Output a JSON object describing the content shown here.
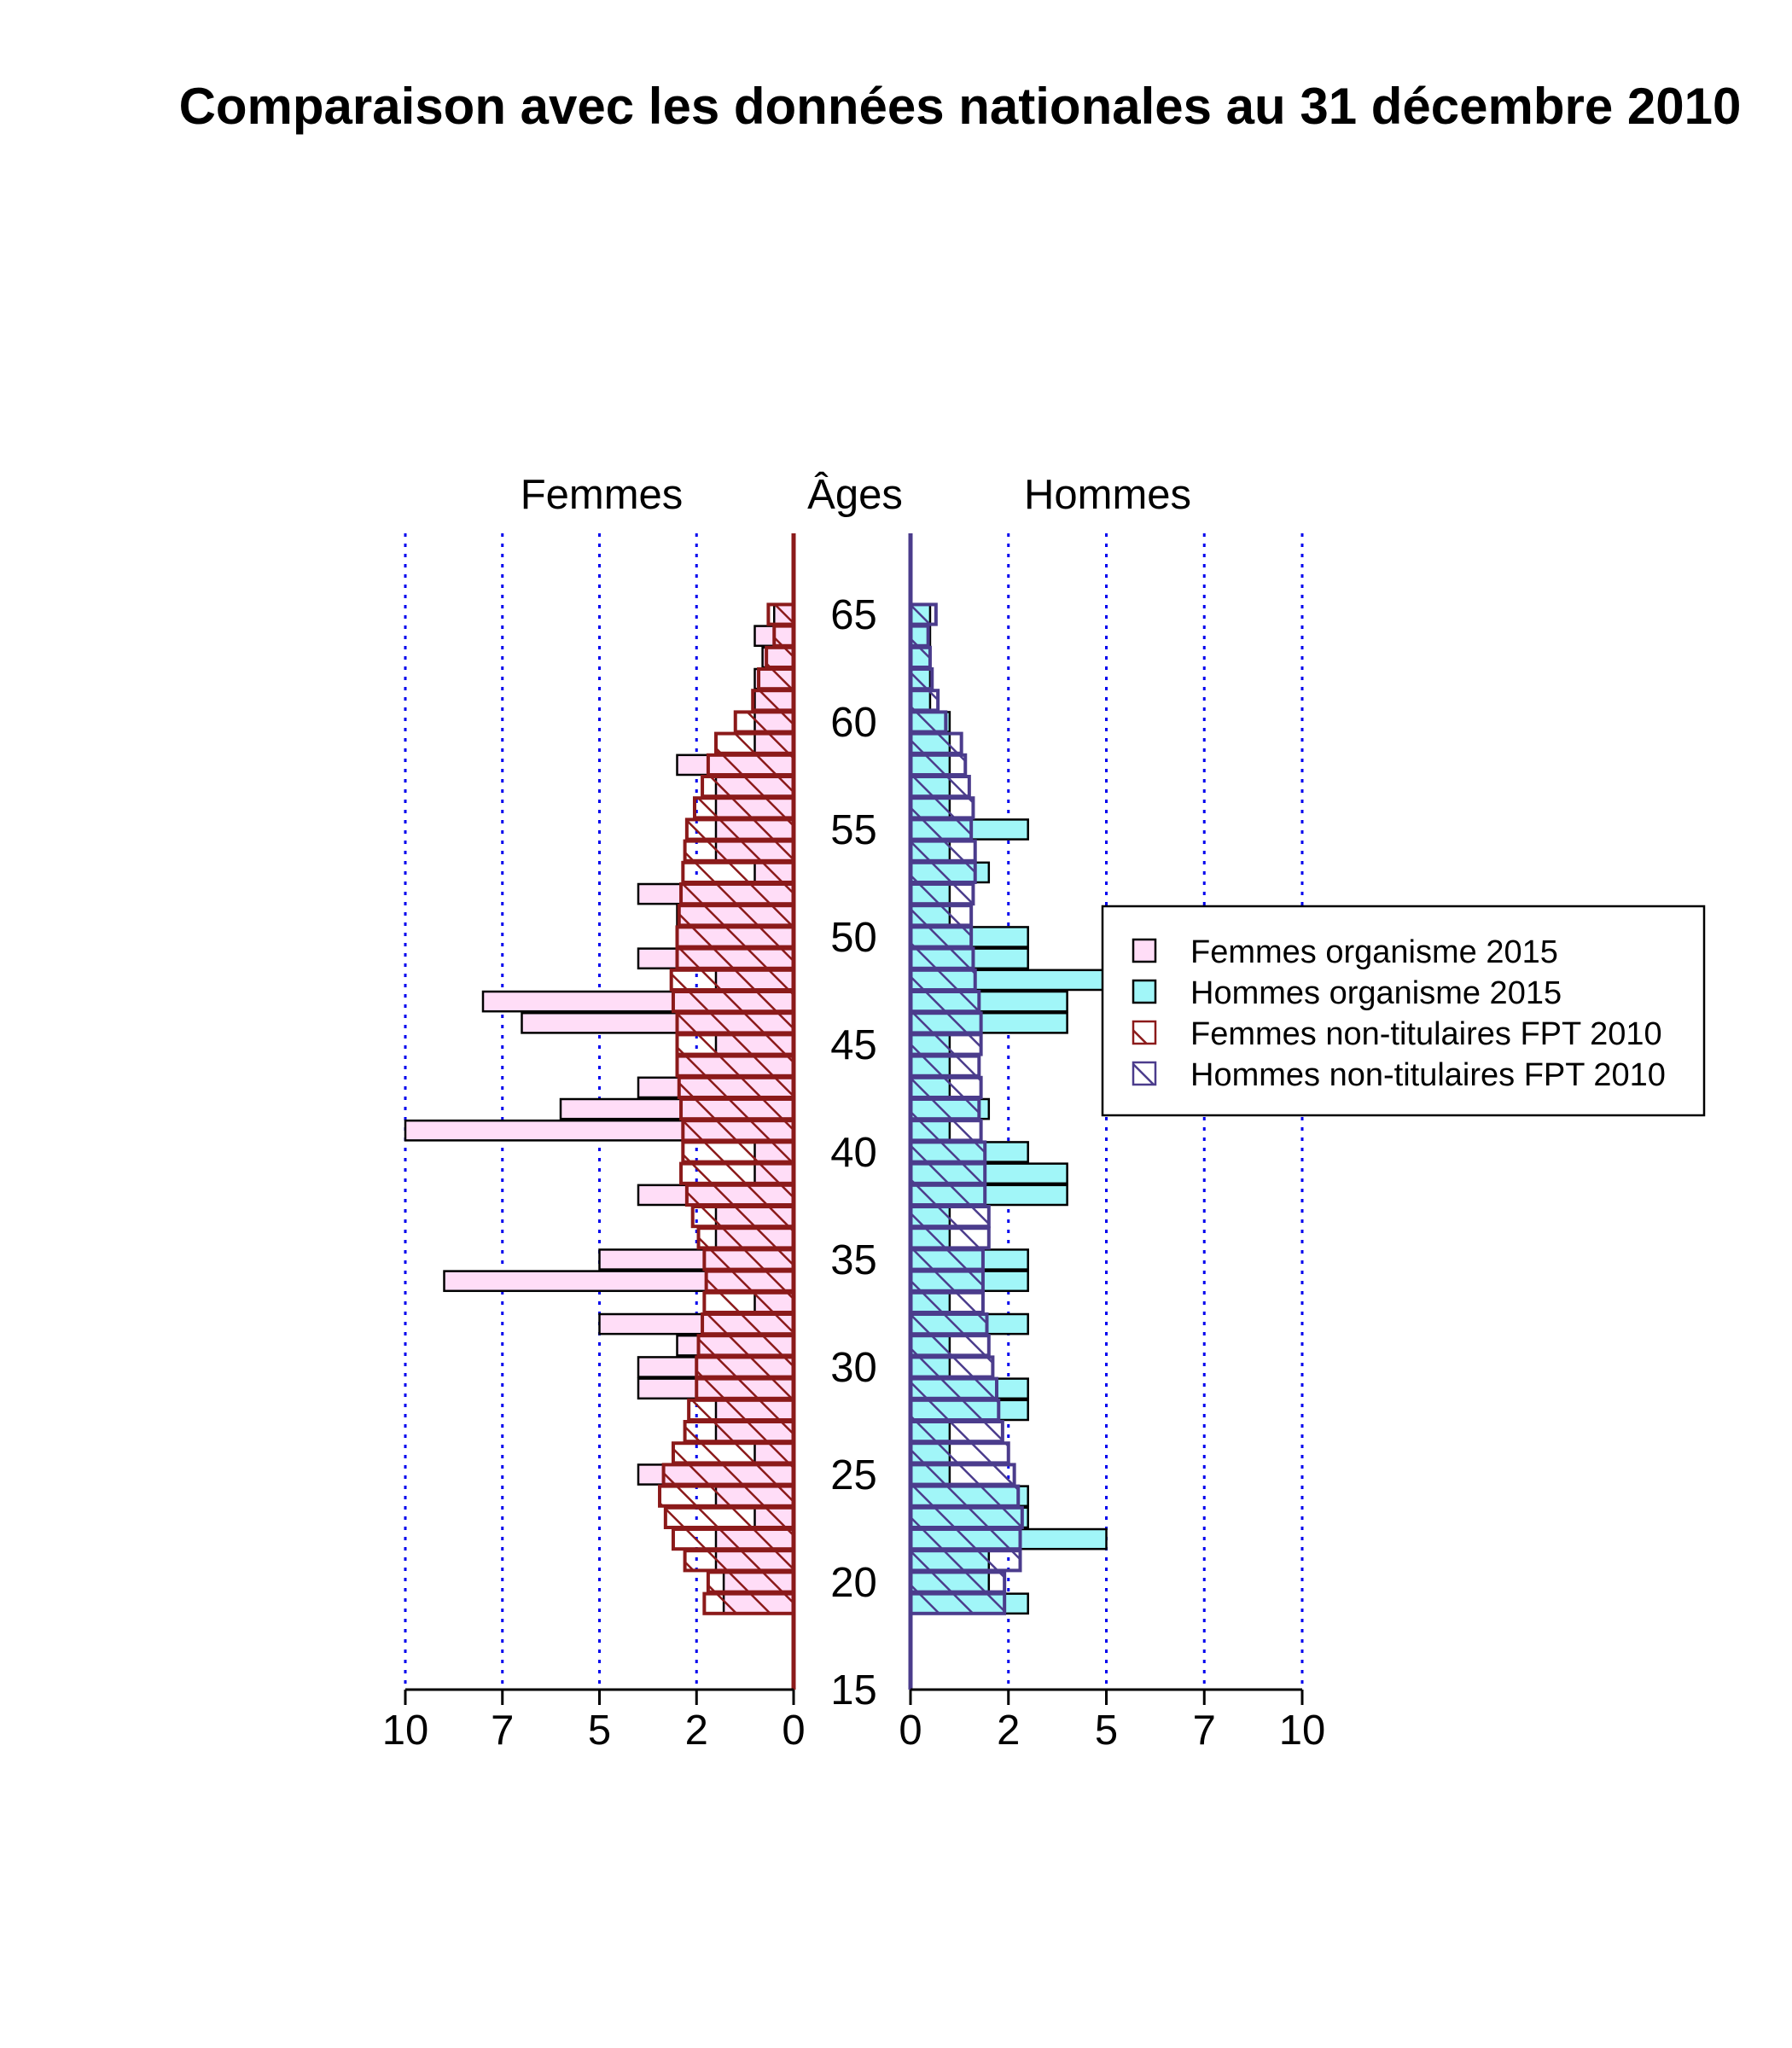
{
  "chart_data": {
    "type": "bar",
    "subtype": "population-pyramid",
    "title": "Comparaison avec les données nationales au 31 décembre 2010",
    "left_label": "Femmes",
    "center_label": "Âges",
    "right_label": "Hommes",
    "ages": [
      19,
      20,
      21,
      22,
      23,
      24,
      25,
      26,
      27,
      28,
      29,
      30,
      31,
      32,
      33,
      34,
      35,
      36,
      37,
      38,
      39,
      40,
      41,
      42,
      43,
      44,
      45,
      46,
      47,
      48,
      49,
      50,
      51,
      52,
      53,
      54,
      55,
      56,
      57,
      58,
      59,
      60,
      61,
      62,
      63,
      64,
      65
    ],
    "age_ticks": [
      15,
      20,
      25,
      30,
      35,
      40,
      45,
      50,
      55,
      60,
      65
    ],
    "x_ticks_left": [
      "10",
      "7",
      "5",
      "2",
      "0"
    ],
    "x_ticks_right": [
      "0",
      "2",
      "5",
      "7",
      "10"
    ],
    "x_tick_values": [
      0,
      2.5,
      5,
      7.5,
      10
    ],
    "xlim": [
      0,
      10
    ],
    "series": [
      {
        "name": "Femmes organisme 2015",
        "side": "left",
        "color": "#ffddf7",
        "values": [
          1.8,
          1.8,
          2.0,
          2.0,
          1.0,
          2.0,
          4.0,
          1.0,
          2.0,
          2.0,
          4.0,
          4.0,
          3.0,
          5.0,
          1.0,
          9.0,
          5.0,
          2.0,
          2.0,
          4.0,
          1.0,
          1.0,
          10.0,
          6.0,
          4.0,
          3.0,
          2.0,
          7.0,
          8.0,
          2.0,
          4.0,
          3.0,
          3.0,
          4.0,
          1.0,
          2.0,
          2.0,
          2.0,
          2.0,
          3.0,
          1.0,
          1.0,
          1.0,
          1.0,
          0.8,
          1.0,
          0.5
        ]
      },
      {
        "name": "Hommes organisme 2015",
        "side": "right",
        "color": "#a1f6f8",
        "values": [
          3.0,
          2.0,
          2.0,
          5.0,
          3.0,
          3.0,
          1.0,
          1.0,
          1.0,
          3.0,
          3.0,
          1.0,
          1.0,
          3.0,
          1.0,
          3.0,
          3.0,
          1.0,
          1.0,
          4.0,
          4.0,
          3.0,
          1.0,
          2.0,
          1.0,
          1.0,
          1.0,
          4.0,
          4.0,
          5.0,
          3.0,
          3.0,
          1.0,
          1.0,
          2.0,
          1.0,
          3.0,
          1.0,
          1.0,
          1.0,
          1.0,
          1.0,
          0.5,
          0.5,
          0.5,
          0.5,
          0.5
        ]
      },
      {
        "name": "Femmes non-titulaires FPT 2010",
        "side": "left",
        "color": "#8b1a1a",
        "values": [
          2.3,
          2.2,
          2.8,
          3.1,
          3.3,
          3.45,
          3.35,
          3.1,
          2.8,
          2.7,
          2.5,
          2.5,
          2.45,
          2.35,
          2.3,
          2.25,
          2.3,
          2.45,
          2.6,
          2.75,
          2.9,
          2.85,
          2.85,
          2.9,
          2.95,
          3.0,
          3.0,
          3.0,
          3.1,
          3.15,
          3.0,
          3.0,
          2.95,
          2.9,
          2.85,
          2.8,
          2.75,
          2.55,
          2.35,
          2.2,
          2.0,
          1.5,
          1.05,
          0.9,
          0.7,
          0.5,
          0.65
        ]
      },
      {
        "name": "Hommes non-titulaires FPT 2010",
        "side": "right",
        "color": "#4b3c8c",
        "values": [
          2.4,
          2.4,
          2.8,
          2.8,
          2.85,
          2.75,
          2.65,
          2.5,
          2.35,
          2.25,
          2.2,
          2.1,
          2.0,
          1.95,
          1.85,
          1.85,
          1.85,
          2.0,
          2.0,
          1.9,
          1.9,
          1.9,
          1.8,
          1.75,
          1.8,
          1.75,
          1.8,
          1.8,
          1.75,
          1.65,
          1.6,
          1.55,
          1.55,
          1.6,
          1.65,
          1.65,
          1.55,
          1.6,
          1.5,
          1.4,
          1.3,
          0.9,
          0.7,
          0.55,
          0.5,
          0.45,
          0.65
        ]
      }
    ],
    "legend_position": "right",
    "grid": "vertical dotted blue"
  }
}
